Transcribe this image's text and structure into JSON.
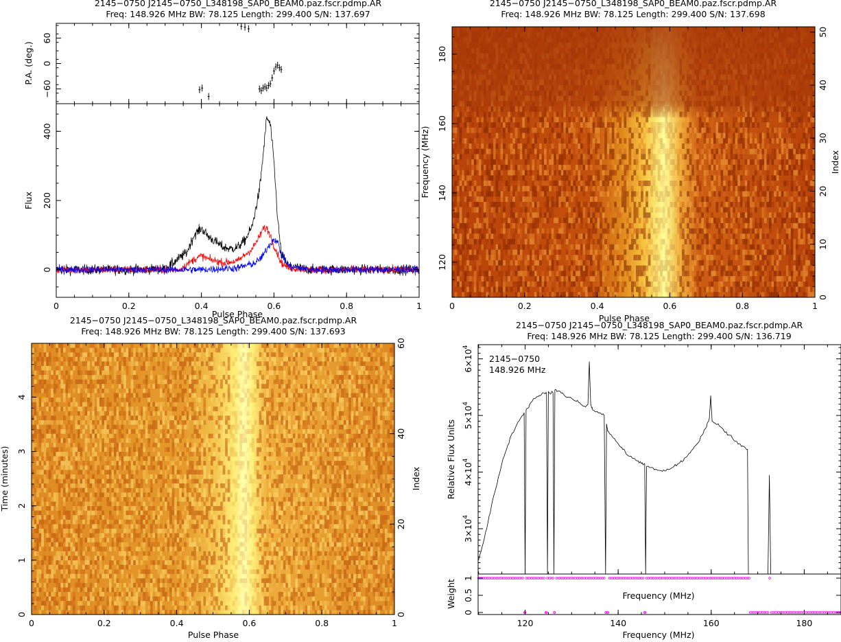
{
  "chart_data": [
    {
      "type": "line",
      "panel": "polarization-profile",
      "title": "2145−0750  J2145−0750_L348198_SAP0_BEAM0.paz.fscr.pdmp.AR",
      "subtitle": "Freq: 148.926 MHz BW: 78.125 Length: 299.400 S/N: 137.697",
      "xlabel": "Pulse Phase",
      "xlim": [
        0,
        1
      ],
      "xticks": [
        "0",
        "0.2",
        "0.4",
        "0.6",
        "0.8",
        "1"
      ],
      "pa": {
        "ylabel": "P.A. (deg.)",
        "ylim": [
          -95,
          95
        ],
        "yticks": [
          "60",
          "0",
          "−60"
        ],
        "points": [
          [
            0.395,
            -62
          ],
          [
            0.402,
            -58
          ],
          [
            0.42,
            -78
          ],
          [
            0.51,
            88
          ],
          [
            0.52,
            86
          ],
          [
            0.53,
            82
          ],
          [
            0.56,
            -60
          ],
          [
            0.565,
            -64
          ],
          [
            0.57,
            -58
          ],
          [
            0.575,
            -55
          ],
          [
            0.58,
            -58
          ],
          [
            0.585,
            -52
          ],
          [
            0.59,
            -48
          ],
          [
            0.595,
            -34
          ],
          [
            0.6,
            -18
          ],
          [
            0.605,
            -8
          ],
          [
            0.61,
            -4
          ],
          [
            0.615,
            -10
          ],
          [
            0.62,
            -14
          ]
        ]
      },
      "profile": {
        "ylabel": "Flux",
        "ylim": [
          -80,
          480
        ],
        "yticks": [
          "0",
          "200",
          "400"
        ],
        "series": [
          {
            "color": "#000000",
            "x": [
              0,
              0.1,
              0.2,
              0.3,
              0.36,
              0.38,
              0.4,
              0.42,
              0.44,
              0.46,
              0.48,
              0.5,
              0.52,
              0.54,
              0.56,
              0.57,
              0.58,
              0.59,
              0.6,
              0.61,
              0.62,
              0.64,
              0.7,
              0.8,
              0.9,
              1
            ],
            "y": [
              0,
              0,
              0,
              2,
              50,
              100,
              120,
              95,
              80,
              65,
              60,
              65,
              85,
              125,
              230,
              330,
              440,
              420,
              310,
              150,
              45,
              10,
              0,
              0,
              0,
              0
            ]
          },
          {
            "color": "#ff0000",
            "x": [
              0,
              0.2,
              0.34,
              0.38,
              0.4,
              0.42,
              0.46,
              0.5,
              0.54,
              0.56,
              0.57,
              0.58,
              0.59,
              0.6,
              0.61,
              0.62,
              0.64,
              0.7,
              1
            ],
            "y": [
              0,
              0,
              0,
              30,
              40,
              30,
              20,
              25,
              60,
              95,
              118,
              120,
              100,
              70,
              45,
              20,
              5,
              0,
              0
            ]
          },
          {
            "color": "#0000ff",
            "x": [
              0,
              0.3,
              0.4,
              0.5,
              0.55,
              0.57,
              0.58,
              0.59,
              0.6,
              0.61,
              0.62,
              0.64,
              0.7,
              1
            ],
            "y": [
              0,
              0,
              0,
              5,
              20,
              40,
              60,
              75,
              90,
              80,
              45,
              10,
              0,
              0
            ]
          }
        ]
      }
    },
    {
      "type": "heatmap",
      "panel": "phase-frequency",
      "title": "2145−0750  J2145−0750_L348198_SAP0_BEAM0.paz.fscr.pdmp.AR",
      "subtitle": "Freq: 148.926 MHz BW: 78.125 Length: 299.400 S/N: 137.698",
      "xlabel": "Pulse Phase",
      "ylabel": "Frequency (MHz)",
      "y2label": "Index",
      "xlim": [
        0,
        1
      ],
      "ylim": [
        109.9,
        187.9
      ],
      "y2lim": [
        0,
        51
      ],
      "xticks": [
        "0",
        "0.2",
        "0.4",
        "0.6",
        "0.8",
        "1"
      ],
      "yticks": [
        "120",
        "140",
        "160",
        "180"
      ],
      "y2ticks": [
        "0",
        "10",
        "20",
        "30",
        "40",
        "50"
      ],
      "pulse_center": 0.585
    },
    {
      "type": "heatmap",
      "panel": "phase-time",
      "title": "2145−0750  J2145−0750_L348198_SAP0_BEAM0.paz.fscr.pdmp.AR",
      "subtitle": "Freq: 148.926 MHz BW: 78.125 Length: 299.400 S/N: 137.693",
      "xlabel": "Pulse Phase",
      "ylabel": "Time (minutes)",
      "y2label": "Index",
      "xlim": [
        0,
        1
      ],
      "ylim": [
        0,
        4.99
      ],
      "y2lim": [
        0,
        60
      ],
      "xticks": [
        "0",
        "0.2",
        "0.4",
        "0.6",
        "0.8",
        "1"
      ],
      "yticks": [
        "0",
        "1",
        "2",
        "3",
        "4"
      ],
      "y2ticks": [
        "0",
        "20",
        "40",
        "60"
      ],
      "pulse_center": 0.585
    },
    {
      "type": "line",
      "panel": "bandpass",
      "title": "2145−0750  J2145−0750_L348198_SAP0_BEAM0.paz.fscr.pdmp.AR",
      "subtitle": "Freq: 148.926 MHz BW: 78.125 Length: 299.400 S/N: 136.719",
      "annotation": [
        "2145−0750",
        "148.926 MHz"
      ],
      "xlabel": "Frequency (MHz)",
      "xlabel_mid": "Frequency (MHz)",
      "ylabel": "Relative Flux Units",
      "wlabel": "Weight",
      "xlim": [
        109.9,
        187.9
      ],
      "ylim": [
        22000,
        62500
      ],
      "xticks": [
        "120",
        "140",
        "160",
        "180"
      ],
      "yticks": [
        "3×10",
        "4×10",
        "5×10",
        "6×10"
      ],
      "ytick_exp": "4",
      "wticks": [
        "0",
        "0.5",
        "1"
      ],
      "flux": {
        "x": [
          110,
          111,
          112,
          113,
          114,
          115,
          116,
          117,
          118,
          119,
          119.8,
          120,
          120.2,
          121,
          122,
          123,
          124,
          124.6,
          124.8,
          125,
          126,
          126.2,
          126.4,
          127,
          128,
          129,
          130,
          131,
          132,
          133,
          133.5,
          133.8,
          134.1,
          134.5,
          135,
          136,
          137,
          137.3,
          137.5,
          137.7,
          138,
          139,
          140,
          141,
          142,
          143,
          144,
          145,
          145.7,
          145.9,
          146.1,
          147,
          148,
          149,
          150,
          151,
          152,
          153,
          154,
          155,
          156,
          157,
          158,
          159,
          159.6,
          159.9,
          160.2,
          161,
          162,
          163,
          164,
          165,
          166,
          167,
          167.8,
          168,
          168.2,
          168.8,
          172.2,
          172.5,
          172.8
        ],
        "y": [
          24500,
          27500,
          31000,
          35000,
          38000,
          41500,
          44000,
          46500,
          48000,
          49500,
          50500,
          22000,
          51000,
          52000,
          53000,
          53500,
          54000,
          54000,
          22000,
          54200,
          54000,
          22000,
          54500,
          54300,
          54000,
          53200,
          53000,
          52500,
          52000,
          51500,
          52000,
          59500,
          52000,
          51000,
          50700,
          50500,
          50000,
          22000,
          48500,
          47500,
          47000,
          46000,
          45000,
          44000,
          43000,
          42500,
          42000,
          41500,
          41500,
          22000,
          41000,
          40800,
          40500,
          40300,
          40200,
          40500,
          41000,
          41500,
          42000,
          43000,
          44000,
          45000,
          46500,
          48000,
          49500,
          53500,
          49000,
          48500,
          48000,
          47000,
          46500,
          45500,
          45000,
          44500,
          44000,
          22000,
          22000,
          22000,
          22000,
          39500,
          22000
        ]
      },
      "weights": [
        {
          "x": 110,
          "w": 1
        },
        {
          "x": 120,
          "w": 0
        },
        {
          "x": 124.6,
          "w": 0
        },
        {
          "x": 126.3,
          "w": 0
        },
        {
          "x": 137.4,
          "w": 0
        },
        {
          "x": 137.8,
          "w": 0
        },
        {
          "x": 145.8,
          "w": 0
        },
        {
          "x": 168.3,
          "w": 1
        },
        {
          "x": 172.5,
          "w": 1
        }
      ]
    }
  ]
}
